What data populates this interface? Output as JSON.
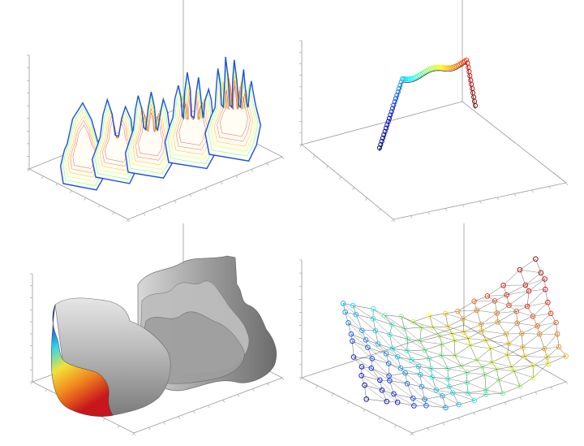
{
  "figure": {
    "panels": [
      {
        "id": "tl",
        "content": "hand-contour-stack"
      },
      {
        "id": "tr",
        "content": "trajectory-curve"
      },
      {
        "id": "bl",
        "content": "shaded-surface-volume"
      },
      {
        "id": "br",
        "content": "graph-mesh-network"
      }
    ],
    "colors": {
      "axis": "#9a9a9a",
      "dark_blue": "#1a237e",
      "blue": "#1e4fd8",
      "cyan": "#33d6e6",
      "yellow": "#f2e13a",
      "orange": "#f28c1e",
      "red": "#c8161d",
      "surface_gray": "#a8a8a8"
    }
  }
}
